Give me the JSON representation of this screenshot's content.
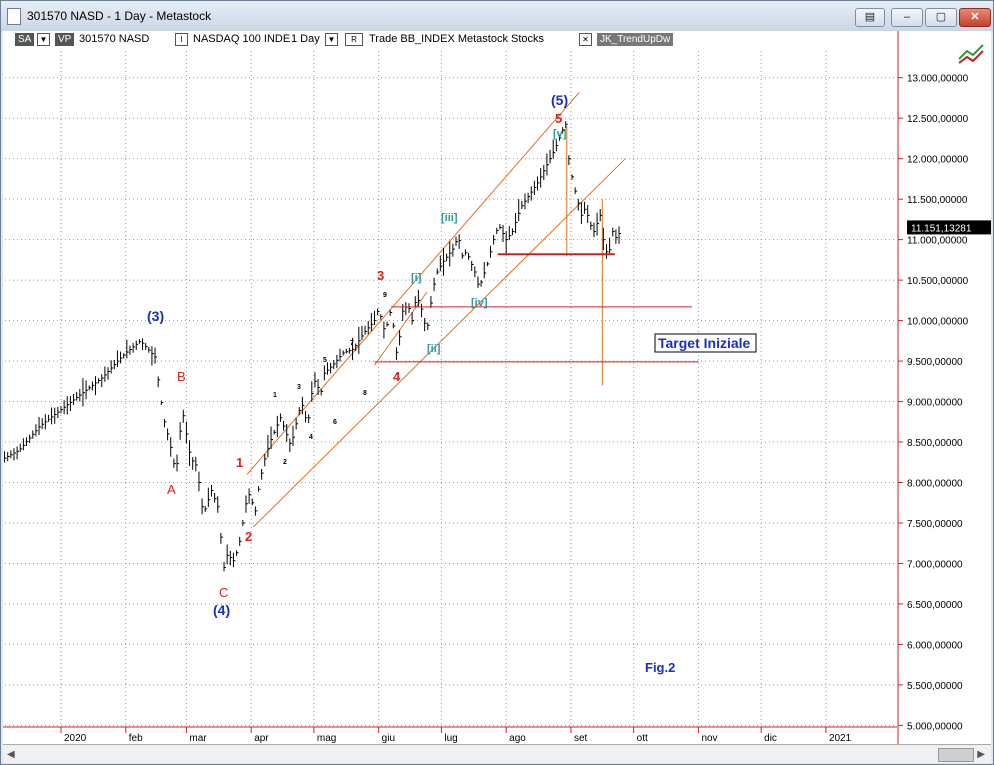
{
  "window": {
    "title": "301570 NASD - 1 Day - Metastock"
  },
  "toolbar": {
    "sa": "SA",
    "vp": "VP",
    "security": "301570 NASD",
    "index_label": "NASDAQ 100 INDE",
    "period": "1 Day",
    "r_box": "R",
    "trade_text": "Trade  BB_INDEX  Metastock  Stocks",
    "indicator": "JK_TrendUpDw"
  },
  "icons": [
    "app-icon",
    "dropdown-icon",
    "close-icon",
    "minimize-icon",
    "restore-icon",
    "indicator-icon"
  ],
  "colors": {
    "price": "#000000",
    "channel": "#e07020",
    "wave_red": "#e02020",
    "wave_blue": "#1a2fbf",
    "wave_teal": "#2a9a9a",
    "axis": "#d02020"
  },
  "chart_data": {
    "type": "bar",
    "series_name": "301570 NASD",
    "last_price": "11.151,13281",
    "y_ticks": [
      "13.000,00000",
      "12.500,00000",
      "12.000,00000",
      "11.500,00000",
      "11.000,00000",
      "10.500,00000",
      "10.000,00000",
      "9.500,00000",
      "9.000,00000",
      "8.500,00000",
      "8.000,00000",
      "7.500,00000",
      "7.000,00000",
      "6.500,00000",
      "6.000,00000",
      "5.500,00000",
      "5.000,00000"
    ],
    "y_tick_values": [
      13000,
      12500,
      12000,
      11500,
      11000,
      10500,
      10000,
      9500,
      9000,
      8500,
      8000,
      7500,
      7000,
      6500,
      6000,
      5500,
      5000
    ],
    "ylim": [
      4980,
      13330
    ],
    "x_months": [
      "2020",
      "feb",
      "mar",
      "apr",
      "mag",
      "giu",
      "lug",
      "ago",
      "set",
      "ott",
      "nov",
      "dic",
      "2021"
    ],
    "x_month_days": [
      0,
      31,
      60,
      91,
      121,
      152,
      182,
      213,
      244,
      274,
      305,
      335,
      366
    ],
    "price_path_days": [
      -27,
      -20,
      -10,
      0,
      10,
      20,
      27,
      31,
      38,
      45,
      49,
      52,
      55,
      58,
      62,
      65,
      68,
      72,
      75,
      78,
      80,
      82,
      85,
      87,
      88,
      90,
      91,
      92,
      94,
      97,
      100,
      105,
      110,
      115,
      118,
      120,
      122,
      124,
      126,
      130,
      135,
      140,
      145,
      150,
      152,
      155,
      158,
      161,
      163,
      166,
      168,
      170,
      172,
      175,
      178,
      180,
      182,
      185,
      188,
      190,
      192,
      194,
      198,
      200,
      204,
      206,
      208,
      210,
      213,
      216,
      220,
      224,
      228,
      232,
      236,
      240,
      242,
      243,
      245,
      247,
      249,
      251,
      253,
      255,
      258,
      260,
      262,
      264,
      266,
      268
    ],
    "price_path_values": [
      8300,
      8400,
      8700,
      8900,
      9100,
      9300,
      9500,
      9600,
      9750,
      9550,
      8800,
      8500,
      8100,
      8900,
      8300,
      8200,
      7600,
      7900,
      7700,
      6950,
      7150,
      7000,
      7200,
      7500,
      7700,
      7850,
      8050,
      7450,
      7850,
      8250,
      8500,
      8800,
      8450,
      9000,
      8700,
      9100,
      9300,
      9050,
      9350,
      9450,
      9600,
      9650,
      9850,
      10000,
      10150,
      9850,
      10150,
      9500,
      10100,
      10200,
      10000,
      10300,
      10200,
      9850,
      10400,
      10600,
      10700,
      10800,
      10900,
      11050,
      10800,
      10850,
      10600,
      10400,
      10700,
      10900,
      11100,
      11150,
      11000,
      11100,
      11400,
      11550,
      11700,
      11900,
      12100,
      12350,
      12450,
      12000,
      11700,
      11500,
      11300,
      11400,
      11200,
      11100,
      11300,
      10900,
      10800,
      11100,
      11000,
      11151
    ],
    "waves": {
      "red": [
        "1",
        "2",
        "3",
        "4",
        "5",
        "A",
        "B",
        "C"
      ],
      "blue": [
        "(3)",
        "(4)",
        "(5)"
      ],
      "teal": [
        "[i]",
        "[ii]",
        "[iii]",
        "[iv]",
        "[v]"
      ],
      "minor": [
        "1",
        "2",
        "3",
        "4",
        "5",
        "6",
        "7",
        "8",
        "9"
      ]
    },
    "annotations": [
      "Target Iniziale",
      "Fig.2"
    ]
  }
}
